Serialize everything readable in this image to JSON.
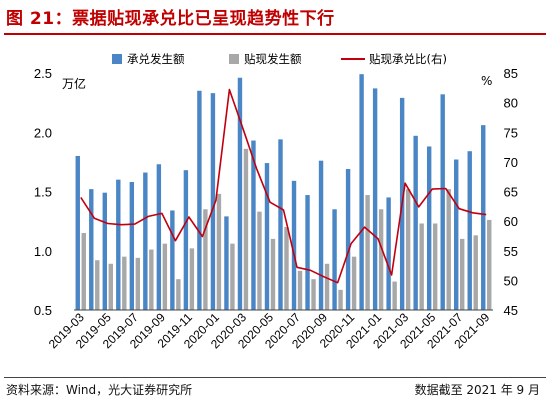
{
  "figure": {
    "title": "图 21：票据贴现承兑比已呈现趋势性下行",
    "source": "资料来源：Wind，光大证券研究所",
    "data_cutoff": "数据截至 2021 年 9 月"
  },
  "colors": {
    "title": "#c00000",
    "acceptance_bar": "#4a86c5",
    "discount_bar": "#a8a8a8",
    "ratio_line": "#c0000f"
  },
  "chart_data": {
    "type": "bar",
    "title": "票据贴现承兑比已呈现趋势性下行",
    "y_left_unit": "万亿",
    "y_right_unit": "%",
    "ylim_left": [
      0.5,
      2.5
    ],
    "ylim_right": [
      45,
      85
    ],
    "yticks_left": [
      "0.5",
      "1.0",
      "1.5",
      "2.0",
      "2.5"
    ],
    "yticks_right": [
      "45",
      "50",
      "55",
      "60",
      "65",
      "70",
      "75",
      "80",
      "85"
    ],
    "legend_position": "top",
    "grid": false,
    "x_tick_labels": [
      "2019-03",
      "2019-05",
      "2019-07",
      "2019-09",
      "2019-11",
      "2020-01",
      "2020-03",
      "2020-05",
      "2020-07",
      "2020-09",
      "2020-11",
      "2021-01",
      "2021-03",
      "2021-05",
      "2021-07",
      "2021-09"
    ],
    "categories": [
      "2019-03",
      "2019-04",
      "2019-05",
      "2019-06",
      "2019-07",
      "2019-08",
      "2019-09",
      "2019-10",
      "2019-11",
      "2019-12",
      "2020-01",
      "2020-02",
      "2020-03",
      "2020-04",
      "2020-05",
      "2020-06",
      "2020-07",
      "2020-08",
      "2020-09",
      "2020-10",
      "2020-11",
      "2020-12",
      "2021-01",
      "2021-02",
      "2021-03",
      "2021-04",
      "2021-05",
      "2021-06",
      "2021-07",
      "2021-08",
      "2021-09"
    ],
    "series": [
      {
        "name": "承兑发生额",
        "type": "bar",
        "axis": "left",
        "values": [
          1.8,
          1.52,
          1.49,
          1.6,
          1.58,
          1.66,
          1.73,
          1.34,
          1.68,
          2.35,
          2.33,
          1.29,
          2.46,
          1.93,
          1.74,
          1.94,
          1.59,
          1.47,
          1.76,
          1.35,
          1.69,
          2.49,
          2.37,
          1.45,
          2.29,
          1.97,
          1.88,
          2.32,
          1.77,
          1.84,
          2.06
        ]
      },
      {
        "name": "贴现发生额",
        "type": "bar",
        "axis": "left",
        "values": [
          1.15,
          0.92,
          0.89,
          0.95,
          0.94,
          1.01,
          1.06,
          0.76,
          1.02,
          1.35,
          1.48,
          1.06,
          1.86,
          1.33,
          1.1,
          1.2,
          0.83,
          0.76,
          0.89,
          0.67,
          0.95,
          1.47,
          1.35,
          0.74,
          1.52,
          1.23,
          1.23,
          1.52,
          1.1,
          1.13,
          1.26
        ]
      },
      {
        "name": "贴现承兑比(右)",
        "type": "line",
        "axis": "right",
        "values": [
          64.0,
          60.5,
          59.6,
          59.4,
          59.5,
          60.8,
          61.3,
          56.7,
          60.7,
          57.4,
          63.5,
          82.2,
          75.6,
          68.9,
          63.2,
          61.9,
          52.2,
          51.7,
          50.6,
          49.6,
          56.2,
          59.0,
          57.0,
          50.9,
          66.4,
          62.4,
          65.4,
          65.5,
          62.1,
          61.4,
          61.1
        ]
      }
    ]
  }
}
